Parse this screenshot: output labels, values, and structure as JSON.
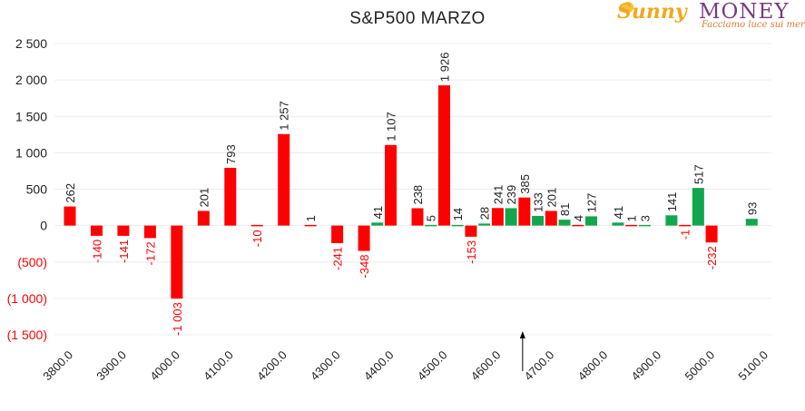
{
  "logo": {
    "main": "Sunny",
    "second": "MONEY",
    "tagline": "Facciamo luce sui mercati"
  },
  "chart_data": {
    "type": "bar",
    "title": "S&P500 MARZO",
    "ylim": [
      -1500,
      2500
    ],
    "yticks": [
      {
        "v": 2500,
        "label": "2 500"
      },
      {
        "v": 2000,
        "label": "2 000"
      },
      {
        "v": 1500,
        "label": "1 500"
      },
      {
        "v": 1000,
        "label": "1 000"
      },
      {
        "v": 500,
        "label": "500"
      },
      {
        "v": 0,
        "label": "0"
      },
      {
        "v": -500,
        "label": "(500)"
      },
      {
        "v": -1000,
        "label": "(1 000)"
      },
      {
        "v": -1500,
        "label": "(1 500)"
      }
    ],
    "xticks": [
      "3800.0",
      "3900.0",
      "4000.0",
      "4100.0",
      "4200.0",
      "4300.0",
      "4400.0",
      "4500.0",
      "4600.0",
      "4700.0",
      "4800.0",
      "4900.0",
      "5000.0",
      "5100.0"
    ],
    "x_range": [
      3800,
      5100
    ],
    "grid": true,
    "current_price_marker": 4650,
    "series": [
      {
        "color": "#ff0000",
        "points": [
          {
            "x": 3800,
            "v": 262,
            "label": "262"
          },
          {
            "x": 3850,
            "v": -140,
            "label": "-140"
          },
          {
            "x": 3900,
            "v": -141,
            "label": "-141"
          },
          {
            "x": 3950,
            "v": -172,
            "label": "-172"
          },
          {
            "x": 4000,
            "v": -1003,
            "label": "-1 003"
          },
          {
            "x": 4050,
            "v": 201,
            "label": "201"
          },
          {
            "x": 4100,
            "v": 793,
            "label": "793"
          },
          {
            "x": 4150,
            "v": -10,
            "label": "-10"
          },
          {
            "x": 4200,
            "v": 1257,
            "label": "1 257"
          },
          {
            "x": 4250,
            "v": 1,
            "label": "1"
          },
          {
            "x": 4300,
            "v": -241,
            "label": "-241"
          },
          {
            "x": 4350,
            "v": -348,
            "label": "-348"
          },
          {
            "x": 4400,
            "v": 1107,
            "label": "1 107"
          },
          {
            "x": 4450,
            "v": 238,
            "label": "238"
          },
          {
            "x": 4500,
            "v": 1926,
            "label": "1 926"
          },
          {
            "x": 4550,
            "v": -153,
            "label": "-153"
          },
          {
            "x": 4600,
            "v": 241,
            "label": "241"
          },
          {
            "x": 4650,
            "v": 385,
            "label": "385"
          },
          {
            "x": 4700,
            "v": 201,
            "label": "201"
          },
          {
            "x": 4750,
            "v": 4,
            "label": "4"
          },
          {
            "x": 4850,
            "v": 1,
            "label": "1"
          },
          {
            "x": 4950,
            "v": -1,
            "label": "-1"
          },
          {
            "x": 5000,
            "v": -232,
            "label": "-232"
          }
        ]
      },
      {
        "color": "#12a64e",
        "points": [
          {
            "x": 4375,
            "v": 41,
            "label": "41"
          },
          {
            "x": 4475,
            "v": 5,
            "label": "5"
          },
          {
            "x": 4525,
            "v": 14,
            "label": "14"
          },
          {
            "x": 4575,
            "v": 28,
            "label": "28"
          },
          {
            "x": 4625,
            "v": 239,
            "label": "239"
          },
          {
            "x": 4675,
            "v": 133,
            "label": "133"
          },
          {
            "x": 4725,
            "v": 81,
            "label": "81"
          },
          {
            "x": 4775,
            "v": 127,
            "label": "127"
          },
          {
            "x": 4825,
            "v": 41,
            "label": "41"
          },
          {
            "x": 4875,
            "v": 3,
            "label": "3"
          },
          {
            "x": 4925,
            "v": 141,
            "label": "141"
          },
          {
            "x": 4975,
            "v": 517,
            "label": "517"
          },
          {
            "x": 5075,
            "v": 93,
            "label": "93"
          }
        ]
      }
    ]
  }
}
